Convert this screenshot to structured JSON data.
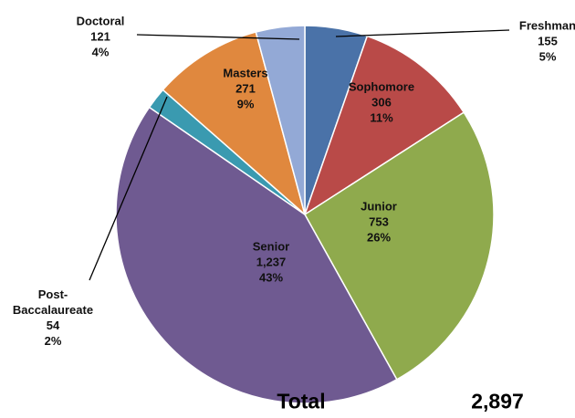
{
  "chart_data": {
    "type": "pie",
    "categories": [
      "Freshman",
      "Sophomore",
      "Junior",
      "Senior",
      "Post-Baccalaureate",
      "Masters",
      "Doctoral"
    ],
    "values": [
      155,
      306,
      753,
      1237,
      54,
      271,
      121
    ],
    "value_labels": [
      "155",
      "306",
      "753",
      "1,237",
      "54",
      "271",
      "121"
    ],
    "percent_labels": [
      "5%",
      "11%",
      "26%",
      "43%",
      "2%",
      "9%",
      "4%"
    ],
    "colors": [
      "#4a72a8",
      "#b94a48",
      "#8faa4d",
      "#6f5a91",
      "#3a9ab0",
      "#e0883e",
      "#93a9d6"
    ],
    "total_label": "Total",
    "total": {
      "value": 2897,
      "label": "2,897"
    }
  }
}
